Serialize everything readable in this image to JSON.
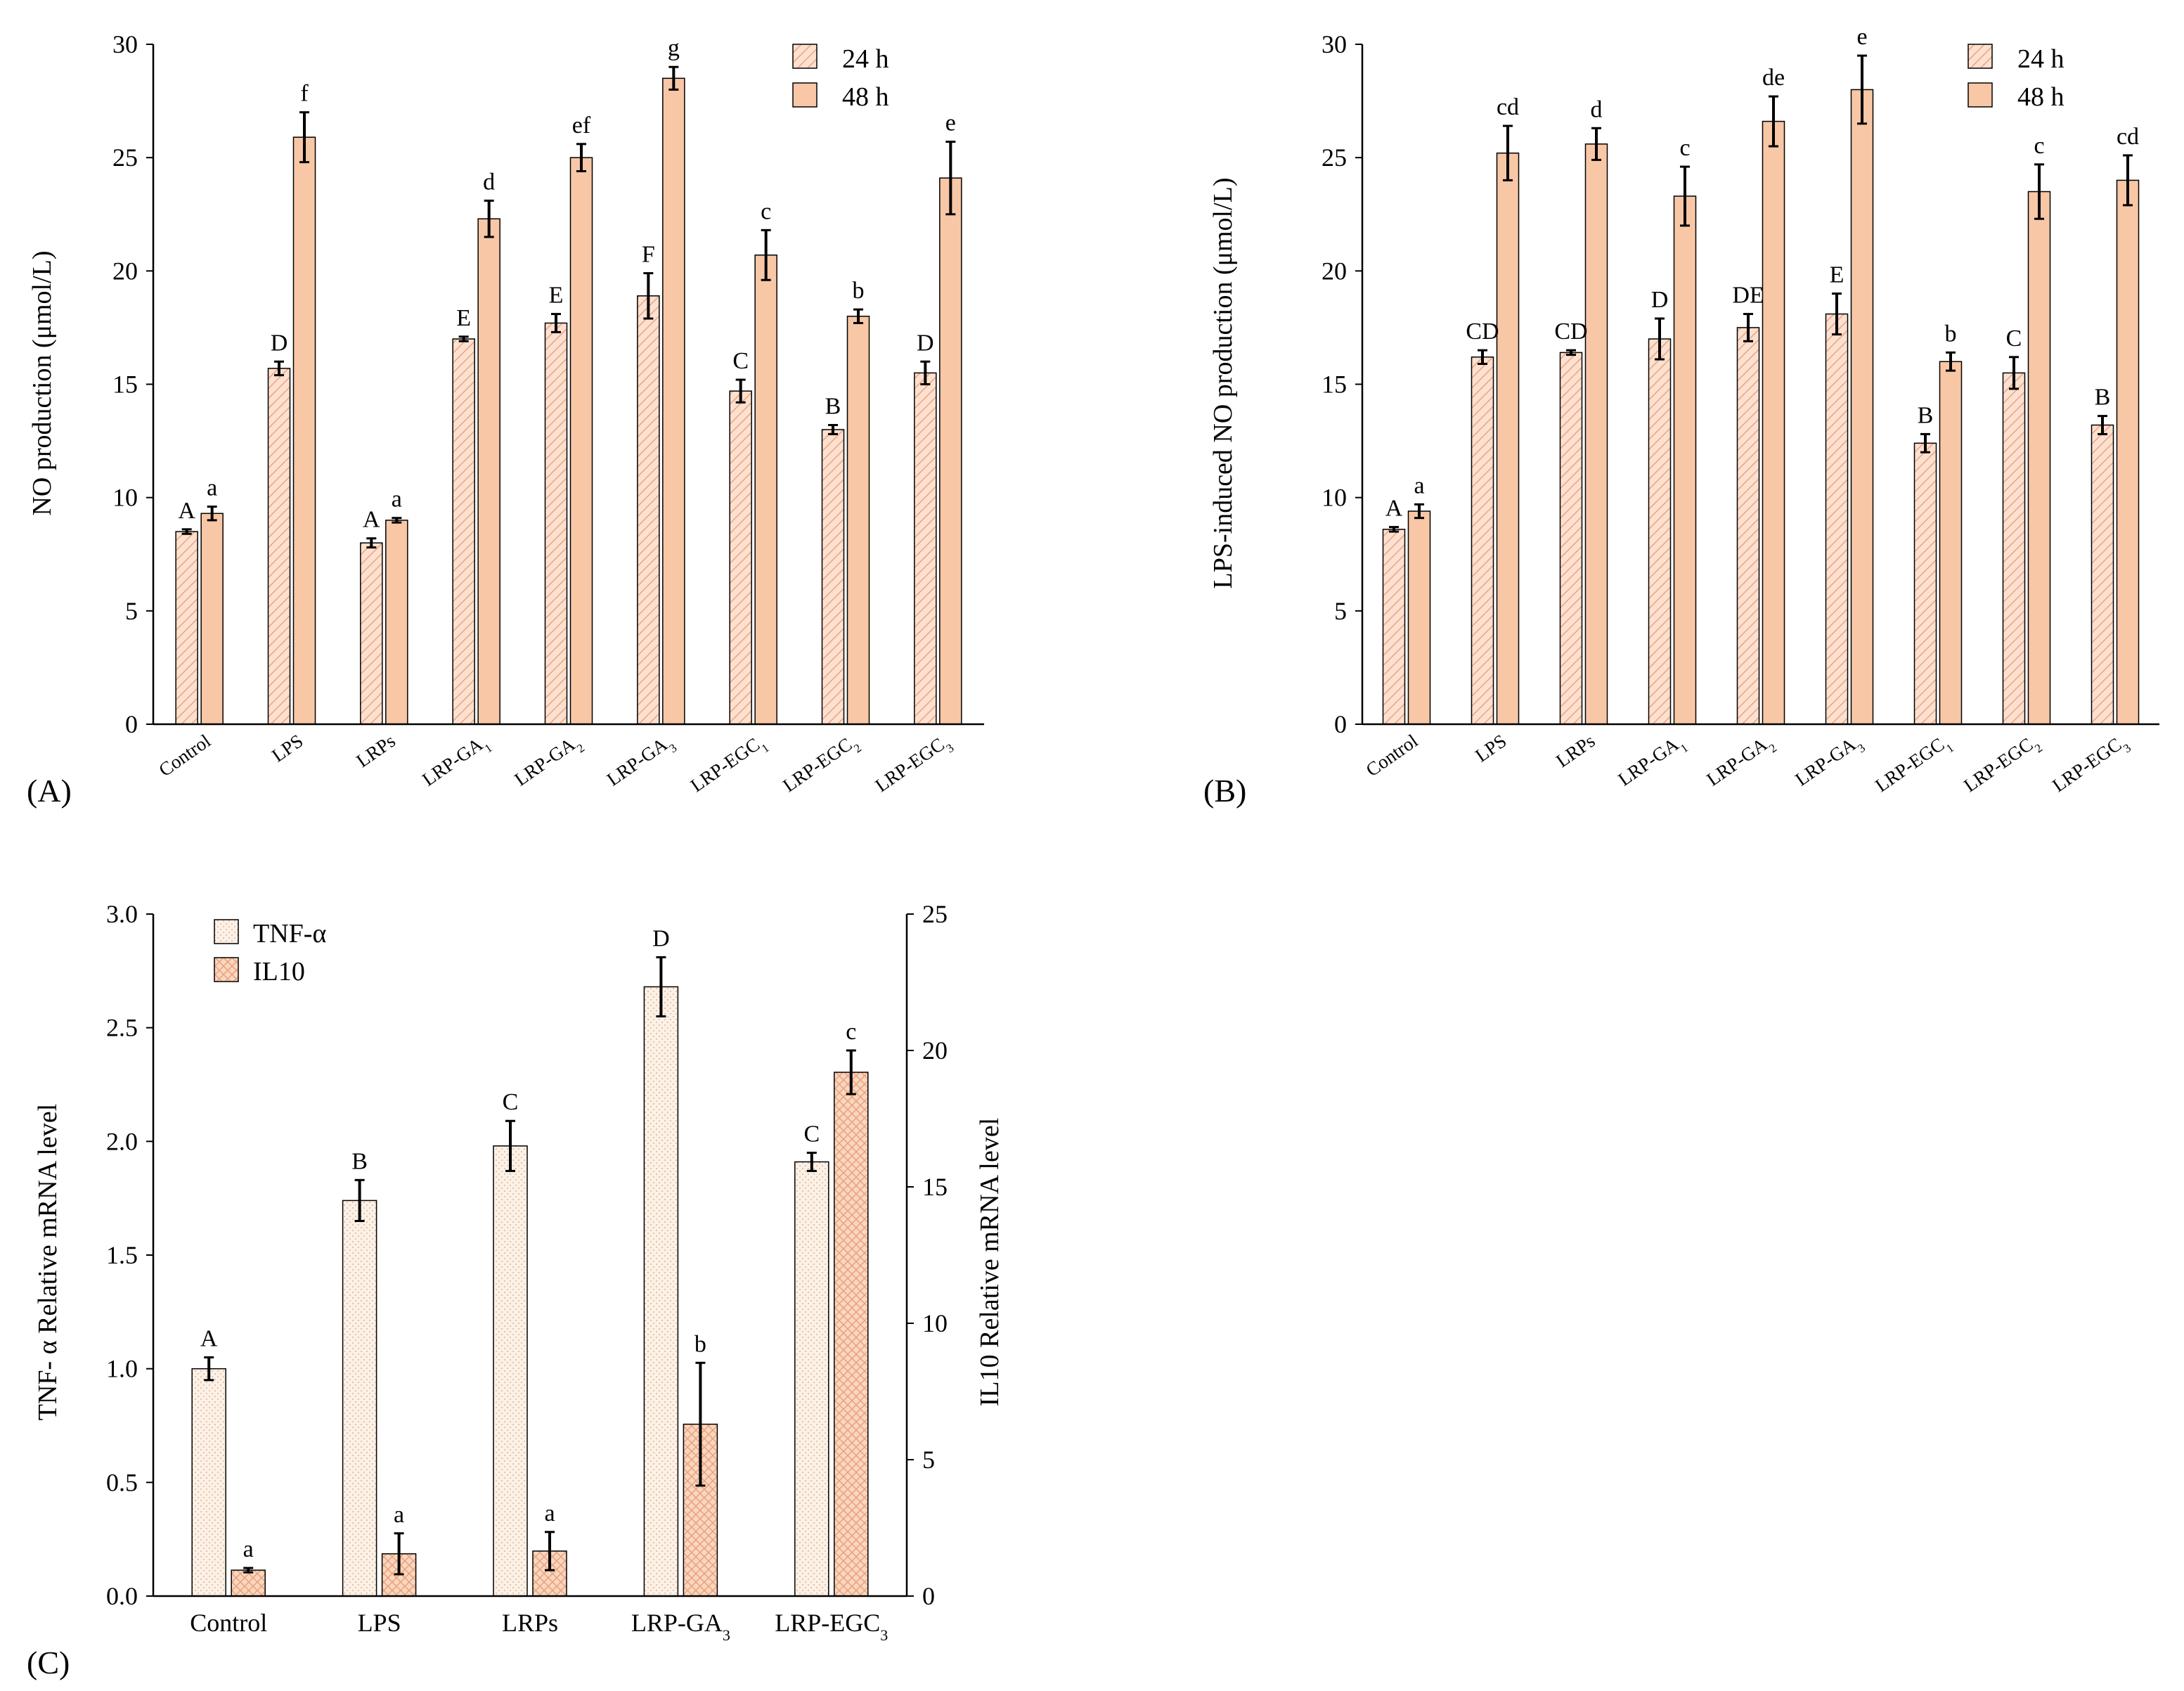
{
  "colors": {
    "h24_fill": "#fde0cf",
    "h48_fill": "#f8c7a6",
    "tnf_fill": "#fdf1e6",
    "il10_fill": "#fbd6bf",
    "stroke": "#000000"
  },
  "chart_data": [
    {
      "panel": "(A)",
      "type": "bar",
      "ylabel": "NO production (μmol/L)",
      "ylim": [
        0,
        30
      ],
      "yticks": [
        "0",
        "5",
        "10",
        "15",
        "20",
        "25",
        "30"
      ],
      "categories": [
        {
          "base": "Control",
          "sub": ""
        },
        {
          "base": "LPS",
          "sub": ""
        },
        {
          "base": "LRPs",
          "sub": ""
        },
        {
          "base": "LRP-GA",
          "sub": "1"
        },
        {
          "base": "LRP-GA",
          "sub": "2"
        },
        {
          "base": "LRP-GA",
          "sub": "3"
        },
        {
          "base": "LRP-EGC",
          "sub": "1"
        },
        {
          "base": "LRP-EGC",
          "sub": "2"
        },
        {
          "base": "LRP-EGC",
          "sub": "3"
        }
      ],
      "legend": [
        "24 h",
        "48 h"
      ],
      "series": [
        {
          "name": "24 h",
          "values": [
            8.5,
            15.7,
            8.0,
            17.0,
            17.7,
            18.9,
            14.7,
            13.0,
            15.5
          ],
          "errors": [
            0.1,
            0.3,
            0.2,
            0.1,
            0.4,
            1.0,
            0.5,
            0.2,
            0.5
          ],
          "labels": [
            "A",
            "D",
            "A",
            "E",
            "E",
            "F",
            "C",
            "B",
            "D"
          ]
        },
        {
          "name": "48 h",
          "values": [
            9.3,
            25.9,
            9.0,
            22.3,
            25.0,
            28.5,
            20.7,
            18.0,
            24.1
          ],
          "errors": [
            0.3,
            1.1,
            0.1,
            0.8,
            0.6,
            0.5,
            1.1,
            0.3,
            1.6
          ],
          "labels": [
            "a",
            "f",
            "a",
            "d",
            "ef",
            "g",
            "c",
            "b",
            "e"
          ]
        }
      ]
    },
    {
      "panel": "(B)",
      "type": "bar",
      "ylabel": "LPS-induced NO production (μmol/L)",
      "ylim": [
        0,
        30
      ],
      "yticks": [
        "0",
        "5",
        "10",
        "15",
        "20",
        "25",
        "30"
      ],
      "categories": [
        {
          "base": "Control",
          "sub": ""
        },
        {
          "base": "LPS",
          "sub": ""
        },
        {
          "base": "LRPs",
          "sub": ""
        },
        {
          "base": "LRP-GA",
          "sub": "1"
        },
        {
          "base": "LRP-GA",
          "sub": "2"
        },
        {
          "base": "LRP-GA",
          "sub": "3"
        },
        {
          "base": "LRP-EGC",
          "sub": "1"
        },
        {
          "base": "LRP-EGC",
          "sub": "2"
        },
        {
          "base": "LRP-EGC",
          "sub": "3"
        }
      ],
      "legend": [
        "24 h",
        "48 h"
      ],
      "series": [
        {
          "name": "24 h",
          "values": [
            8.6,
            16.2,
            16.4,
            17.0,
            17.5,
            18.1,
            12.4,
            15.5,
            13.2
          ],
          "errors": [
            0.1,
            0.3,
            0.1,
            0.9,
            0.6,
            0.9,
            0.4,
            0.7,
            0.4
          ],
          "labels": [
            "A",
            "CD",
            "CD",
            "D",
            "DE",
            "E",
            "B",
            "C",
            "B"
          ]
        },
        {
          "name": "48 h",
          "values": [
            9.4,
            25.2,
            25.6,
            23.3,
            26.6,
            28.0,
            16.0,
            23.5,
            24.0
          ],
          "errors": [
            0.3,
            1.2,
            0.7,
            1.3,
            1.1,
            1.5,
            0.4,
            1.2,
            1.1
          ],
          "labels": [
            "a",
            "cd",
            "d",
            "c",
            "de",
            "e",
            "b",
            "c",
            "cd"
          ]
        }
      ]
    },
    {
      "panel": "(C)",
      "type": "bar",
      "ylabel_left": "TNF- α Relative mRNA level",
      "ylabel_right": "IL10 Relative mRNA level",
      "ylim_left": [
        0,
        3.0
      ],
      "ylim_right": [
        0,
        25
      ],
      "yticks_left": [
        "0.0",
        "0.5",
        "1.0",
        "1.5",
        "2.0",
        "2.5",
        "3.0"
      ],
      "yticks_right": [
        "0",
        "5",
        "10",
        "15",
        "20",
        "25"
      ],
      "categories": [
        {
          "base": "Control",
          "sub": ""
        },
        {
          "base": "LPS",
          "sub": ""
        },
        {
          "base": "LRPs",
          "sub": ""
        },
        {
          "base": "LRP-GA",
          "sub": "3"
        },
        {
          "base": "LRP-EGC",
          "sub": "3"
        }
      ],
      "legend": [
        "TNF-α",
        "IL10"
      ],
      "series": [
        {
          "name": "TNF-α",
          "axis": "left",
          "values": [
            1.0,
            1.74,
            1.98,
            2.68,
            1.91
          ],
          "errors": [
            0.05,
            0.09,
            0.11,
            0.13,
            0.04
          ],
          "labels": [
            "A",
            "B",
            "C",
            "D",
            "C"
          ]
        },
        {
          "name": "IL10",
          "axis": "right",
          "values": [
            0.95,
            1.55,
            1.65,
            6.3,
            19.2
          ],
          "errors": [
            0.08,
            0.75,
            0.7,
            2.25,
            0.8
          ],
          "labels": [
            "a",
            "a",
            "a",
            "b",
            "c"
          ]
        }
      ]
    }
  ]
}
